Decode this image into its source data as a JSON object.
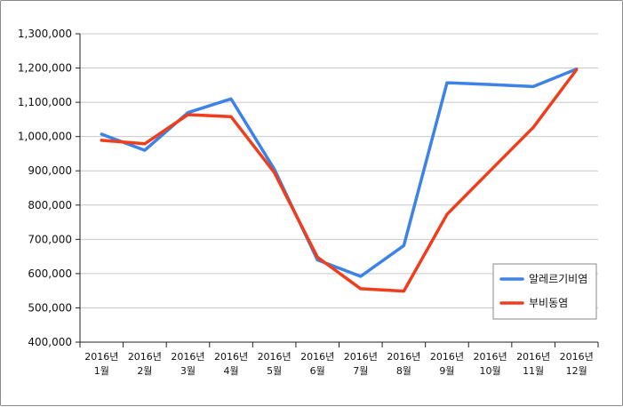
{
  "chart_data": {
    "type": "line",
    "categories": [
      [
        "2016년",
        "1월"
      ],
      [
        "2016년",
        "2월"
      ],
      [
        "2016년",
        "3월"
      ],
      [
        "2016년",
        "4월"
      ],
      [
        "2016년",
        "5월"
      ],
      [
        "2016년",
        "6월"
      ],
      [
        "2016년",
        "7월"
      ],
      [
        "2016년",
        "8월"
      ],
      [
        "2016년",
        "9월"
      ],
      [
        "2016년",
        "10월"
      ],
      [
        "2016년",
        "11월"
      ],
      [
        "2016년",
        "12월"
      ]
    ],
    "series": [
      {
        "name": "알레르기비염",
        "color": "#3d82e6",
        "values": [
          1007000,
          960000,
          1070000,
          1110000,
          905000,
          640000,
          592000,
          682000,
          1157000,
          1152000,
          1146000,
          1197000
        ]
      },
      {
        "name": "부비동염",
        "color": "#ee3e1e",
        "values": [
          989000,
          979000,
          1064000,
          1058000,
          895000,
          648000,
          556000,
          549000,
          773000,
          900000,
          1027000,
          1195000
        ]
      }
    ],
    "ylim": [
      400000,
      1300000
    ],
    "yticks": [
      "400,000",
      "500,000",
      "600,000",
      "700,000",
      "800,000",
      "900,000",
      "1,000,000",
      "1,100,000",
      "1,200,000",
      "1,300,000"
    ],
    "ytick_values": [
      400000,
      500000,
      600000,
      700000,
      800000,
      900000,
      1000000,
      1100000,
      1200000,
      1300000
    ],
    "grid": "horizontal",
    "legend_position": "bottom-right",
    "title": "",
    "xlabel": "",
    "ylabel": ""
  }
}
